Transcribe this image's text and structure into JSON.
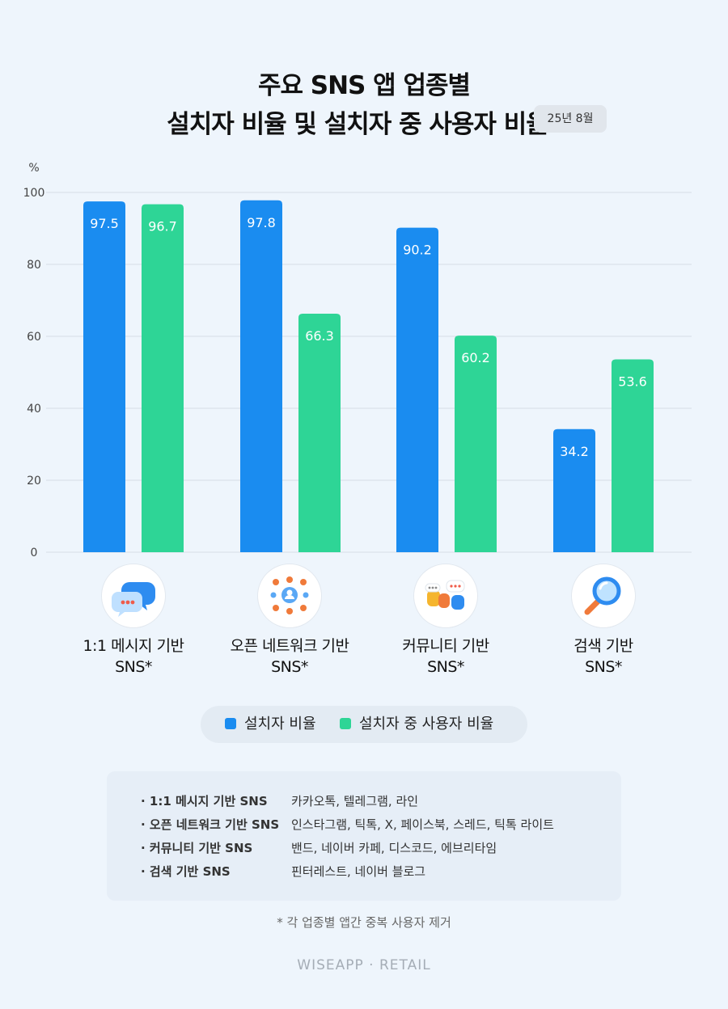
{
  "title_line1": "주요 SNS 앱 업종별",
  "title_line2": "설치자 비율 및 설치자 중 사용자 비율",
  "date_badge": "25년 8월",
  "brand": "WISEAPP · RETAIL",
  "footnote": "* 각 업종별 앱간 중복 사용자 제거",
  "colors": {
    "installed": "#1a8cf0",
    "active": "#2ed596"
  },
  "icons": [
    "chat-bubbles-icon",
    "people-network-icon",
    "community-speech-icon",
    "magnifier-icon"
  ],
  "chart_data": {
    "type": "bar",
    "unit_label": "%",
    "ylim": [
      0,
      100
    ],
    "yticks": [
      0,
      20,
      40,
      60,
      80,
      100
    ],
    "categories": [
      [
        "1:1 메시지 기반",
        "SNS*"
      ],
      [
        "오픈 네트워크 기반",
        "SNS*"
      ],
      [
        "커뮤니티 기반",
        "SNS*"
      ],
      [
        "검색 기반",
        "SNS*"
      ]
    ],
    "series": [
      {
        "name": "설치자 비율",
        "values": [
          97.5,
          97.8,
          90.2,
          34.2
        ]
      },
      {
        "name": "설치자 중 사용자 비율",
        "values": [
          96.7,
          66.3,
          60.2,
          53.6
        ]
      }
    ],
    "legend": "bottom-center",
    "grid": true
  },
  "notes": [
    {
      "key": "· 1:1 메시지 기반 SNS",
      "value": "카카오톡, 텔레그램, 라인"
    },
    {
      "key": "· 오픈 네트워크 기반 SNS",
      "value": "인스타그램, 틱톡, X, 페이스북, 스레드, 틱톡 라이트"
    },
    {
      "key": "· 커뮤니티 기반 SNS",
      "value": "밴드, 네이버 카페, 디스코드, 에브리타임"
    },
    {
      "key": "· 검색 기반 SNS",
      "value": "핀터레스트, 네이버 블로그"
    }
  ]
}
